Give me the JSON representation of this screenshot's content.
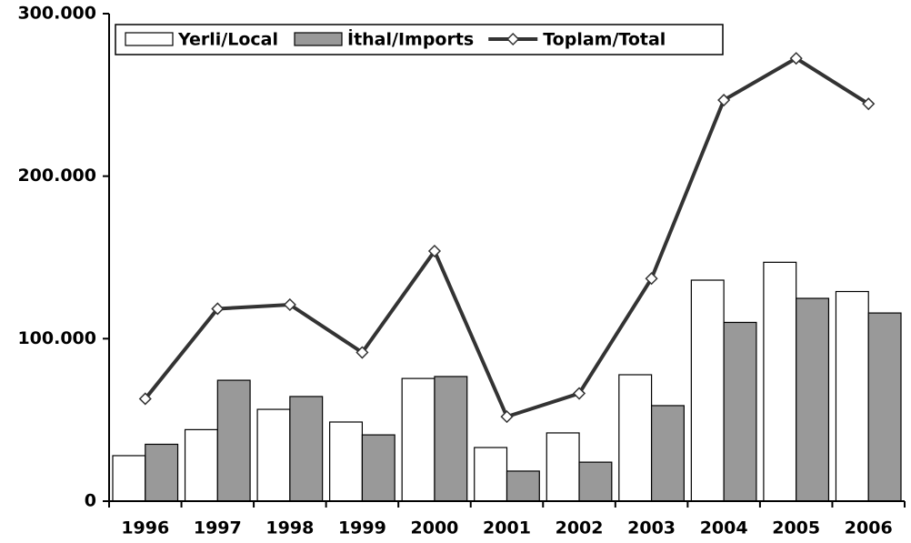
{
  "chart_data": {
    "type": "bar",
    "categories": [
      "1996",
      "1997",
      "1998",
      "1999",
      "2000",
      "2001",
      "2002",
      "2003",
      "2004",
      "2005",
      "2006"
    ],
    "series": [
      {
        "name": "Yerli/Local",
        "color": "#ffffff",
        "values": [
          28000,
          44000,
          56500,
          48700,
          75500,
          33000,
          42000,
          77800,
          136000,
          147000,
          129000
        ]
      },
      {
        "name": "İthal/Imports",
        "color": "#999999",
        "values": [
          35000,
          74400,
          64400,
          40800,
          76700,
          18500,
          24000,
          58800,
          110000,
          124800,
          115800
        ]
      },
      {
        "name": "Toplam/Total",
        "type": "line",
        "color": "#333333",
        "values": [
          63000,
          118400,
          120900,
          91500,
          153900,
          52000,
          66300,
          137000,
          246800,
          272500,
          244500
        ]
      }
    ],
    "ylim": [
      0,
      300000
    ],
    "yticks": [
      {
        "value": 0,
        "label": "0"
      },
      {
        "value": 100000,
        "label": "100.000"
      },
      {
        "value": 200000,
        "label": "200.000"
      },
      {
        "value": 300000,
        "label": "300.000"
      }
    ],
    "legend": "top-left"
  }
}
